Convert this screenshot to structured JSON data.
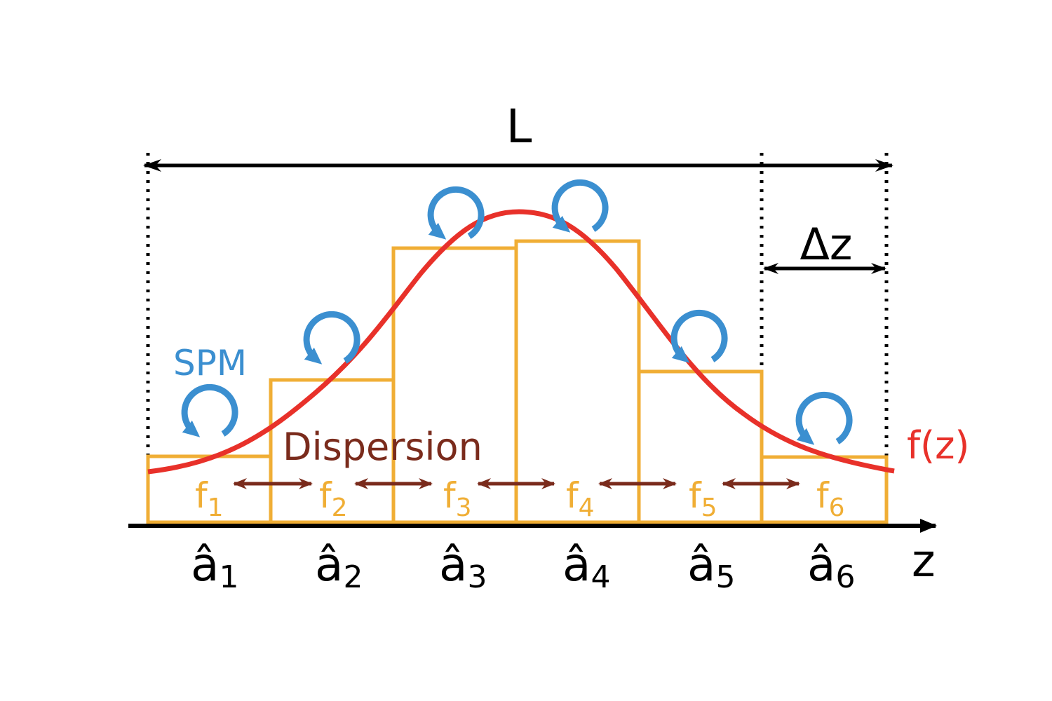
{
  "labels": {
    "length": "L",
    "step": "Δz",
    "spm": "SPM",
    "dispersion": "Dispersion",
    "function": "f(z)",
    "axis": "z"
  },
  "steps": [
    {
      "f_base": "f",
      "f_sub": "1",
      "a_base": "â",
      "a_sub": "1",
      "level": 0.24
    },
    {
      "f_base": "f",
      "f_sub": "2",
      "a_base": "â",
      "a_sub": "2",
      "level": 0.53
    },
    {
      "f_base": "f",
      "f_sub": "3",
      "a_base": "â",
      "a_sub": "3",
      "level": 1.0
    },
    {
      "f_base": "f",
      "f_sub": "4",
      "a_base": "â",
      "a_sub": "4",
      "level": 1.03
    },
    {
      "f_base": "f",
      "f_sub": "5",
      "a_base": "â",
      "a_sub": "5",
      "level": 0.55
    },
    {
      "f_base": "f",
      "f_sub": "6",
      "a_base": "â",
      "a_sub": "6",
      "level": 0.24
    }
  ],
  "colors": {
    "axis": "#000000",
    "curve": "#e8312a",
    "step": "#f0ae35",
    "spm": "#3b8fd0",
    "dispersion": "#7a2b1c"
  }
}
